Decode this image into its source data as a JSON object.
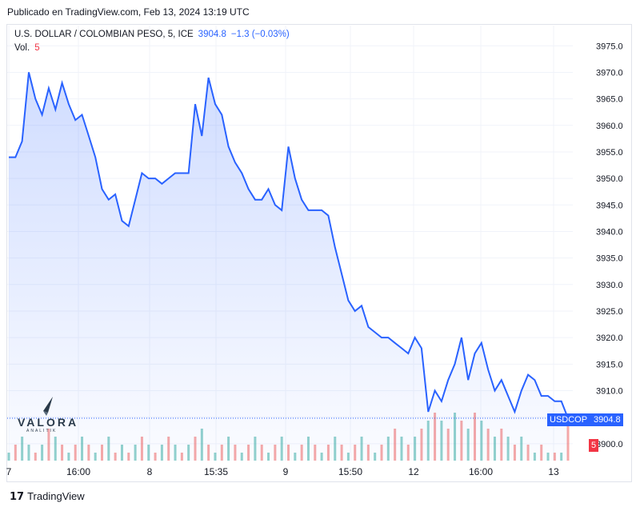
{
  "header": {
    "published": "Publicado en TradingView.com, Feb 13, 2024 13:19 UTC"
  },
  "legend": {
    "symbol": "U.S. DOLLAR / COLOMBIAN PESO, 5, ICE",
    "last": "3904.8",
    "change": "−1.3 (−0.03%)",
    "vol_label": "Vol.",
    "vol_value": "5"
  },
  "tags": {
    "symbol": "USDCOP",
    "price": "3904.8",
    "volume": "5"
  },
  "logo": {
    "name": "VALORA",
    "sub": "ANALITIK"
  },
  "footer": {
    "brand": "TradingView"
  },
  "colors": {
    "line": "#2962ff",
    "fill": "#2962ff",
    "vol_up": "#26a69a",
    "vol_down": "#ef5350",
    "grid": "#f0f3fa"
  },
  "chart_data": {
    "type": "area",
    "ylim": [
      3895,
      3977
    ],
    "y_ticks": [
      "3975.0",
      "3970.0",
      "3965.0",
      "3960.0",
      "3955.0",
      "3950.0",
      "3945.0",
      "3940.0",
      "3935.0",
      "3930.0",
      "3925.0",
      "3920.0",
      "3915.0",
      "3910.0",
      "3905.0",
      "3900.0"
    ],
    "x_ticks": [
      "7",
      "16:00",
      "8",
      "15:35",
      "9",
      "15:50",
      "12",
      "16:00",
      "13"
    ],
    "grid": true,
    "series": [
      {
        "values": [
          3954,
          3954,
          3957,
          3970,
          3965,
          3962,
          3967,
          3963,
          3968,
          3964,
          3961,
          3962,
          3958,
          3954,
          3948,
          3946,
          3947,
          3942,
          3941,
          3946,
          3951,
          3950,
          3950,
          3949,
          3950,
          3951,
          3951,
          3951,
          3964,
          3958,
          3969,
          3964,
          3962,
          3956,
          3953,
          3951,
          3948,
          3946,
          3946,
          3948,
          3945,
          3944,
          3956,
          3950,
          3946,
          3944,
          3944,
          3944,
          3943,
          3937,
          3932,
          3927,
          3925,
          3926,
          3922,
          3921,
          3920,
          3920,
          3919,
          3918,
          3917,
          3920,
          3918,
          3906,
          3910,
          3908,
          3912,
          3915,
          3920,
          3912,
          3917,
          3919,
          3914,
          3910,
          3912,
          3909,
          3906,
          3910,
          3913,
          3912,
          3909,
          3909,
          3908,
          3908,
          3904.8
        ]
      }
    ],
    "volume": {
      "values": [
        1,
        2,
        3,
        2,
        1,
        2,
        4,
        3,
        2,
        1,
        2,
        3,
        2,
        1,
        2,
        3,
        1,
        2,
        1,
        2,
        3,
        2,
        1,
        2,
        3,
        2,
        1,
        2,
        3,
        4,
        2,
        1,
        2,
        3,
        2,
        1,
        2,
        3,
        2,
        1,
        2,
        3,
        2,
        1,
        2,
        3,
        2,
        1,
        2,
        3,
        2,
        1,
        2,
        3,
        2,
        1,
        2,
        3,
        4,
        3,
        2,
        3,
        4,
        5,
        6,
        5,
        4,
        6,
        5,
        4,
        6,
        5,
        4,
        3,
        4,
        3,
        2,
        3,
        2,
        1,
        2,
        1,
        1,
        1,
        5
      ],
      "up": [
        true,
        false,
        true,
        true,
        false,
        true,
        false,
        true,
        false,
        true,
        false,
        true,
        false,
        true,
        false,
        true,
        false,
        true,
        false,
        true,
        false,
        true,
        false,
        true,
        false,
        true,
        false,
        true,
        false,
        true,
        false,
        true,
        false,
        true,
        false,
        true,
        false,
        true,
        false,
        true,
        false,
        true,
        false,
        true,
        false,
        true,
        false,
        true,
        false,
        true,
        false,
        true,
        false,
        true,
        false,
        true,
        false,
        true,
        false,
        true,
        false,
        true,
        false,
        true,
        false,
        true,
        false,
        true,
        false,
        true,
        false,
        true,
        false,
        true,
        false,
        true,
        false,
        true,
        false,
        true,
        false,
        true,
        false,
        true,
        false
      ]
    }
  }
}
